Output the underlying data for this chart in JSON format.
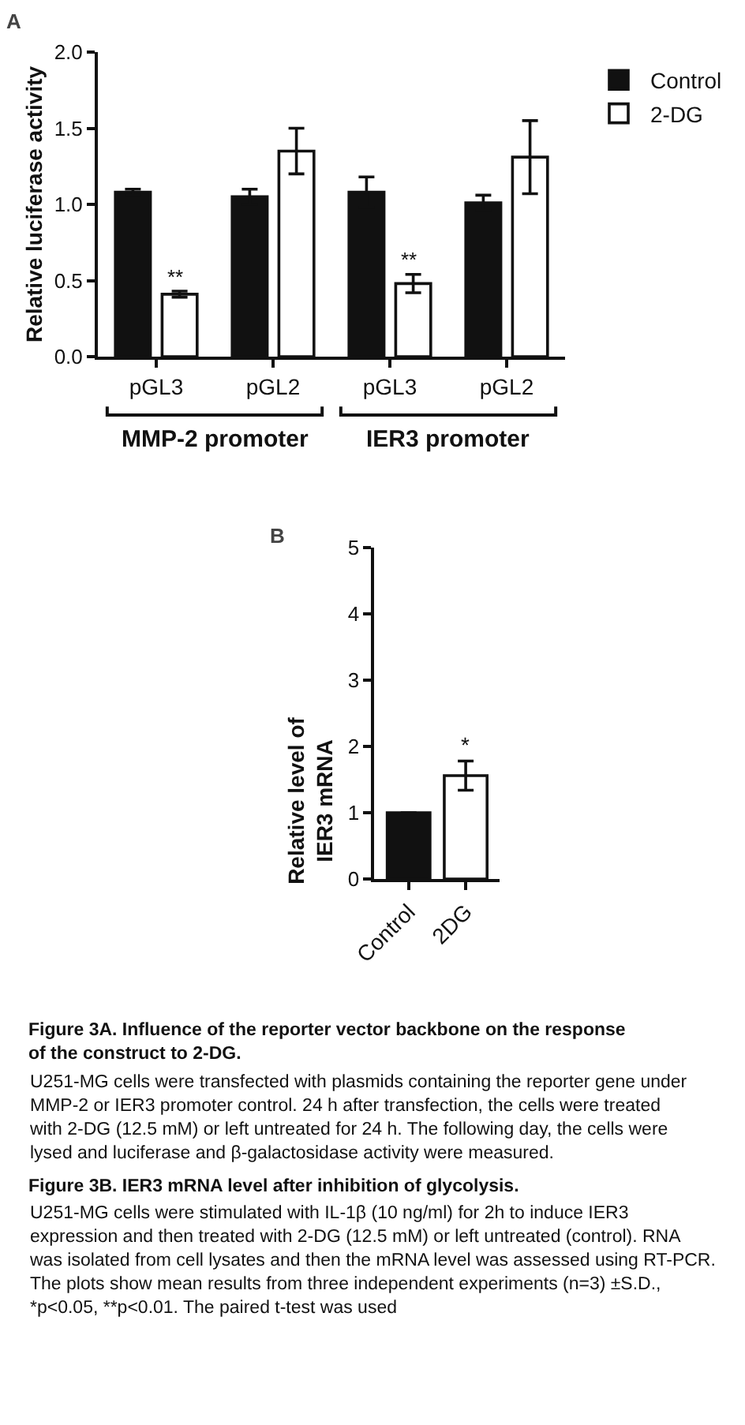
{
  "chart_data": [
    {
      "type": "bar",
      "title": "A",
      "ylabel": "Relative luciferase activity",
      "categories": [
        "pGL3",
        "pGL2",
        "pGL3",
        "pGL2"
      ],
      "series": [
        {
          "name": "Control",
          "color": "#111111",
          "values": [
            1.08,
            1.05,
            1.08,
            1.01
          ],
          "errors": [
            0.02,
            0.05,
            0.1,
            0.05
          ]
        },
        {
          "name": "2-DG",
          "color": "#ffffff",
          "values": [
            0.41,
            1.35,
            0.48,
            1.31
          ],
          "errors": [
            0.02,
            0.15,
            0.06,
            0.24
          ]
        }
      ],
      "ylim": [
        0,
        2
      ],
      "yticks": [
        {
          "value": 0,
          "label": "0.0"
        },
        {
          "value": 0.5,
          "label": "0.5"
        },
        {
          "value": 1,
          "label": "1.0"
        },
        {
          "value": 1.5,
          "label": "1.5"
        },
        {
          "value": 2,
          "label": "2.0"
        }
      ],
      "legend": "top right",
      "annotations": [
        "**",
        "**",
        "MMP-2 promoter",
        "IER3 promoter"
      ]
    },
    {
      "type": "bar",
      "title": "B",
      "ylabel": "Relative level of IER3 mRNA",
      "categories": [
        "Control",
        "2DG"
      ],
      "values": [
        1.0,
        1.56
      ],
      "colors": [
        "#111111",
        "#ffffff"
      ],
      "errors": [
        null,
        0.22
      ],
      "ylim": [
        0,
        5
      ],
      "yticks": [
        0,
        1,
        2,
        3,
        4,
        5
      ],
      "annotations": [
        "*",
        "Figure 3A. Influence of the reporter vector backbone on the response of the construct to 2-DG.",
        "U251-MG cells were transfected with plasmids containing the reporter gene under MMP-2 or IER3 promoter control. 24 h after transfection, the cells were treated with 2-DG (12.5 mM) or left untreated for 24 h. The following day, the cells were lysed and luciferase and β-galactosidase activity were measured.",
        "Figure 3B. IER3 mRNA level after inhibition of glycolysis.",
        "U251-MG cells were stimulated with IL-1β (10 ng/ml) for 2h to induce IER3 expression and then treated with 2-DG (12.5 mM) or left untreated (control). RNA was isolated from cell lysates and then the mRNA level was assessed using RT-PCR. The plots show mean results from three independent experiments (n=3) ±S.D., *p<0.05, **p<0.01. The paired t-test was used"
      ]
    }
  ]
}
